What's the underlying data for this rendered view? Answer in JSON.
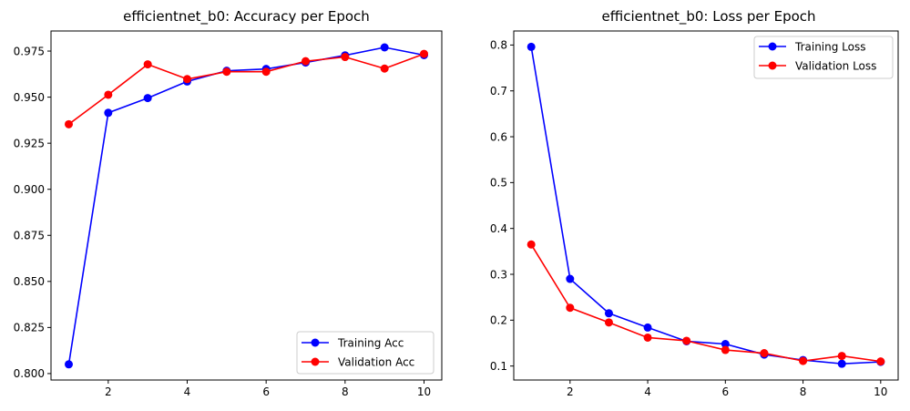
{
  "chart_data": [
    {
      "type": "line",
      "title": "efficientnet_b0: Accuracy per Epoch",
      "xlabel": "",
      "ylabel": "",
      "x": [
        1,
        2,
        3,
        4,
        5,
        6,
        7,
        8,
        9,
        10
      ],
      "xlim": [
        0.55,
        10.45
      ],
      "ylim": [
        0.7965,
        0.9859
      ],
      "xticks": [
        2,
        4,
        6,
        8,
        10
      ],
      "yticks": [
        0.8,
        0.825,
        0.85,
        0.875,
        0.9,
        0.925,
        0.95,
        0.975
      ],
      "ytick_labels": [
        "0.800",
        "0.825",
        "0.850",
        "0.875",
        "0.900",
        "0.925",
        "0.950",
        "0.975"
      ],
      "legend_position": "lower-right",
      "grid": false,
      "series": [
        {
          "name": "Training Acc",
          "color": "#0000ff",
          "values": [
            0.805,
            0.9415,
            0.9495,
            0.9585,
            0.9643,
            0.9653,
            0.9688,
            0.9727,
            0.977,
            0.9728
          ]
        },
        {
          "name": "Validation Acc",
          "color": "#ff0000",
          "values": [
            0.9353,
            0.9513,
            0.9678,
            0.9598,
            0.9638,
            0.9638,
            0.9695,
            0.9718,
            0.9655,
            0.9735
          ]
        }
      ]
    },
    {
      "type": "line",
      "title": "efficientnet_b0: Loss per Epoch",
      "xlabel": "",
      "ylabel": "",
      "x": [
        1,
        2,
        3,
        4,
        5,
        6,
        7,
        8,
        9,
        10
      ],
      "xlim": [
        0.55,
        10.45
      ],
      "ylim": [
        0.0695,
        0.8306
      ],
      "xticks": [
        2,
        4,
        6,
        8,
        10
      ],
      "yticks": [
        0.1,
        0.2,
        0.3,
        0.4,
        0.5,
        0.6,
        0.7,
        0.8
      ],
      "ytick_labels": [
        "0.1",
        "0.2",
        "0.3",
        "0.4",
        "0.5",
        "0.6",
        "0.7",
        "0.8"
      ],
      "legend_position": "upper-right",
      "grid": false,
      "series": [
        {
          "name": "Training Loss",
          "color": "#0000ff",
          "values": [
            0.796,
            0.29,
            0.215,
            0.184,
            0.154,
            0.148,
            0.125,
            0.113,
            0.105,
            0.109
          ]
        },
        {
          "name": "Validation Loss",
          "color": "#ff0000",
          "values": [
            0.365,
            0.227,
            0.195,
            0.162,
            0.155,
            0.135,
            0.128,
            0.111,
            0.122,
            0.11
          ]
        }
      ]
    }
  ]
}
